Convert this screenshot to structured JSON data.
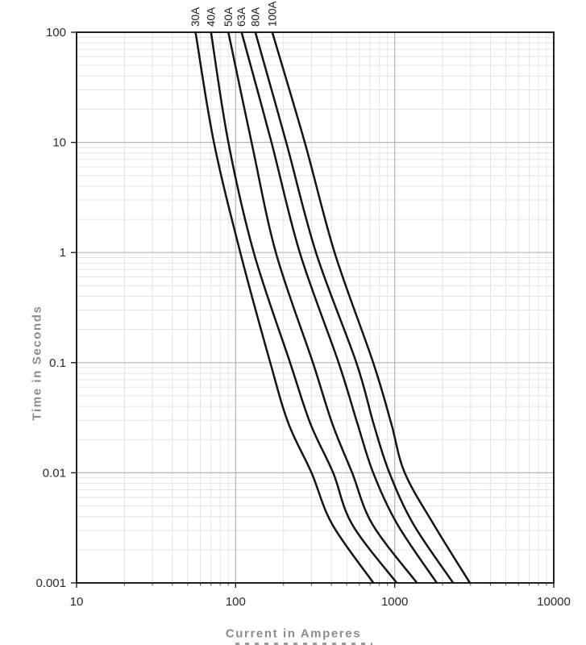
{
  "chart_data": {
    "type": "line",
    "title": "",
    "xlabel": "Current in Amperes",
    "ylabel": "Time in Seconds",
    "x_scale": "log",
    "y_scale": "log",
    "xlim": [
      10,
      10000
    ],
    "ylim": [
      0.001,
      100
    ],
    "x_tick_labels": [
      "10",
      "100",
      "1000",
      "10000"
    ],
    "y_tick_labels": [
      "100",
      "10",
      "1",
      "0.1",
      "0.01",
      "0.001"
    ],
    "grid": {
      "major": true,
      "minor": true
    },
    "legend_position": "curve labels rotated 90deg above top axis",
    "sample_times_s": [
      100,
      10,
      1,
      0.1,
      0.028,
      0.01,
      0.0034,
      0.001
    ],
    "series": [
      {
        "name": "30A",
        "currents_A": [
          56,
          73,
          107,
          165,
          215,
          300,
          405,
          735
        ]
      },
      {
        "name": "40A",
        "currents_A": [
          70,
          90,
          130,
          220,
          295,
          410,
          540,
          1030
        ]
      },
      {
        "name": "50A",
        "currents_A": [
          90,
          126,
          179,
          306,
          405,
          540,
          725,
          1380
        ]
      },
      {
        "name": "63A",
        "currents_A": [
          109,
          168,
          253,
          444,
          583,
          733,
          1040,
          1840
        ]
      },
      {
        "name": "80A",
        "currents_A": [
          133,
          208,
          320,
          574,
          736,
          926,
          1313,
          2330
        ]
      },
      {
        "name": "100A",
        "currents_A": [
          170,
          272,
          419,
          733,
          951,
          1156,
          1758,
          2970
        ]
      }
    ],
    "colors": {
      "curve": "#141414",
      "major_grid": "#b5b5b5",
      "minor_grid": "#e4e4e4",
      "axis_border": "#1f1f1f",
      "tick_label": "#2b2b2b",
      "axis_title": "#8c8c8c",
      "background": "#ffffff"
    }
  }
}
